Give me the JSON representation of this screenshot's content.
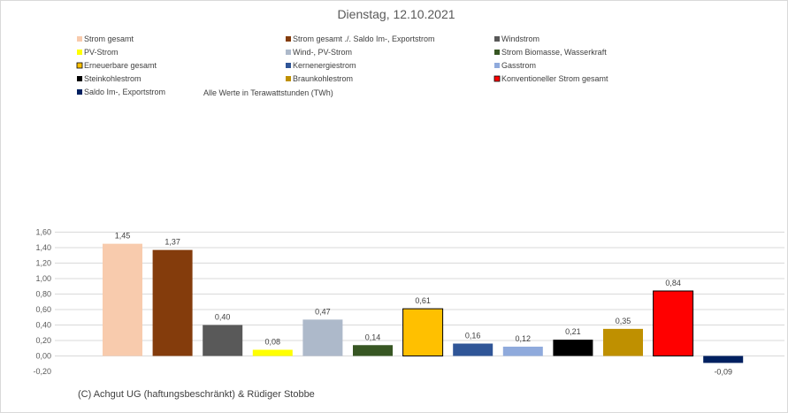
{
  "chart_data": {
    "type": "bar",
    "title": "Dienstag, 12.10.2021",
    "note": "Alle Werte in Terawattstunden (TWh)",
    "copyright": "(C) Achgut UG (haftungsbeschränkt) & Rüdiger Stobbe",
    "ylim": [
      -0.2,
      1.6
    ],
    "yticks": [
      "-0,20",
      "0,00",
      "0,20",
      "0,40",
      "0,60",
      "0,80",
      "1,00",
      "1,20",
      "1,40",
      "1,60"
    ],
    "ytick_values": [
      -0.2,
      0,
      0.2,
      0.4,
      0.6,
      0.8,
      1.0,
      1.2,
      1.4,
      1.6
    ],
    "series": [
      {
        "name": "Strom gesamt",
        "value": 1.45,
        "label": "1,45",
        "color": "#f8cbad",
        "outlined": false
      },
      {
        "name": "Strom gesamt ./. Saldo Im-, Exportstrom",
        "value": 1.37,
        "label": "1,37",
        "color": "#843c0c",
        "outlined": false
      },
      {
        "name": "Windstrom",
        "value": 0.4,
        "label": "0,40",
        "color": "#595959",
        "outlined": false
      },
      {
        "name": "PV-Strom",
        "value": 0.08,
        "label": "0,08",
        "color": "#ffff00",
        "outlined": false
      },
      {
        "name": "Wind-, PV-Strom",
        "value": 0.47,
        "label": "0,47",
        "color": "#adb9ca",
        "outlined": false
      },
      {
        "name": "Strom Biomasse, Wasserkraft",
        "value": 0.14,
        "label": "0,14",
        "color": "#375623",
        "outlined": false
      },
      {
        "name": "Erneuerbare gesamt",
        "value": 0.61,
        "label": "0,61",
        "color": "#ffc000",
        "outlined": true
      },
      {
        "name": "Kernenergiestrom",
        "value": 0.16,
        "label": "0,16",
        "color": "#2f5597",
        "outlined": false
      },
      {
        "name": "Gasstrom",
        "value": 0.12,
        "label": "0,12",
        "color": "#8faadc",
        "outlined": false
      },
      {
        "name": "Steinkohlestrom",
        "value": 0.21,
        "label": "0,21",
        "color": "#000000",
        "outlined": false
      },
      {
        "name": "Braunkohlestrom",
        "value": 0.35,
        "label": "0,35",
        "color": "#bf9000",
        "outlined": false
      },
      {
        "name": "Konventioneller Strom gesamt",
        "value": 0.84,
        "label": "0,84",
        "color": "#ff0000",
        "outlined": true
      },
      {
        "name": "Saldo Im-, Exportstrom",
        "value": -0.09,
        "label": "-0,09",
        "color": "#002060",
        "outlined": false
      }
    ]
  }
}
